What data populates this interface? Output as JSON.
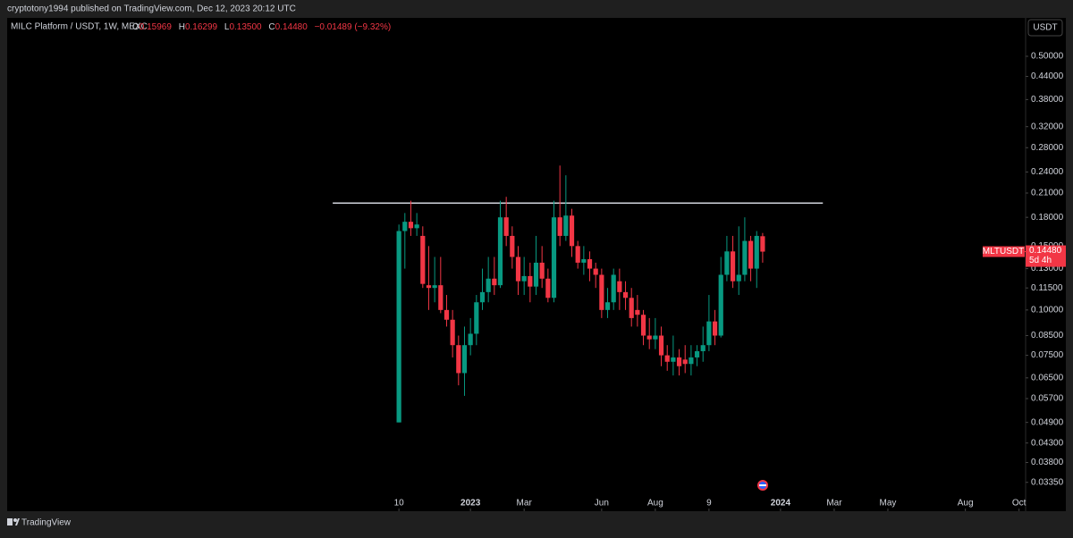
{
  "header": {
    "published": "cryptotony1994 published on TradingView.com, Dec 12, 2023 20:12 UTC"
  },
  "footer": {
    "brand": "TradingView"
  },
  "currency_button": "USDT",
  "legend": {
    "symbol": "MILC Platform / USDT, 1W, MEXC",
    "o_label": "O",
    "o": "0.15969",
    "h_label": "H",
    "h": "0.16299",
    "l_label": "L",
    "l": "0.13500",
    "c_label": "C",
    "c": "0.14480",
    "change": "−0.01489 (−9.32%)"
  },
  "price_tag": {
    "symbol": "MLTUSDT",
    "price": "0.14480",
    "countdown": "5d 4h"
  },
  "chart_data": {
    "type": "candlestick",
    "log_scale": true,
    "up_color": "#089981",
    "down_color": "#f23645",
    "xlim": [
      -65.7,
      105.1
    ],
    "xticks": [
      {
        "value": 0,
        "label": "10"
      },
      {
        "value": 12,
        "label": "2023"
      },
      {
        "value": 21,
        "label": "Mar"
      },
      {
        "value": 34,
        "label": "Jun"
      },
      {
        "value": 43,
        "label": "Aug"
      },
      {
        "value": 52,
        "label": "9"
      },
      {
        "value": 64,
        "label": "2024"
      },
      {
        "value": 73,
        "label": "Mar"
      },
      {
        "value": 82,
        "label": "May"
      },
      {
        "value": 95,
        "label": "Aug"
      },
      {
        "value": 104,
        "label": "Oct"
      }
    ],
    "ylim": [
      0.0279,
      0.638
    ],
    "yticks": [
      {
        "value": 0.5,
        "label": "0.50000"
      },
      {
        "value": 0.44,
        "label": "0.44000"
      },
      {
        "value": 0.38,
        "label": "0.38000"
      },
      {
        "value": 0.32,
        "label": "0.32000"
      },
      {
        "value": 0.28,
        "label": "0.28000"
      },
      {
        "value": 0.24,
        "label": "0.24000"
      },
      {
        "value": 0.21,
        "label": "0.21000"
      },
      {
        "value": 0.18,
        "label": "0.18000"
      },
      {
        "value": 0.15,
        "label": "0.15000"
      },
      {
        "value": 0.13,
        "label": "0.13000"
      },
      {
        "value": 0.115,
        "label": "0.11500"
      },
      {
        "value": 0.1,
        "label": "0.10000"
      },
      {
        "value": 0.085,
        "label": "0.08500"
      },
      {
        "value": 0.075,
        "label": "0.07500"
      },
      {
        "value": 0.065,
        "label": "0.06500"
      },
      {
        "value": 0.057,
        "label": "0.05700"
      },
      {
        "value": 0.049,
        "label": "0.04900"
      },
      {
        "value": 0.043,
        "label": "0.04300"
      },
      {
        "value": 0.038,
        "label": "0.03800"
      },
      {
        "value": 0.0335,
        "label": "0.03350"
      }
    ],
    "hline": {
      "y": 0.197,
      "x": [
        -11.1,
        71.1
      ],
      "color": "#d1d4dc"
    },
    "open": [
      0.049,
      0.165,
      0.175,
      0.168,
      0.16,
      0.117,
      0.115,
      0.117,
      0.1,
      0.094,
      0.08,
      0.067,
      0.08,
      0.086,
      0.105,
      0.112,
      0.122,
      0.117,
      0.18,
      0.16,
      0.14,
      0.12,
      0.124,
      0.116,
      0.135,
      0.122,
      0.108,
      0.18,
      0.16,
      0.182,
      0.15,
      0.135,
      0.138,
      0.13,
      0.125,
      0.1,
      0.105,
      0.12,
      0.112,
      0.108,
      0.1,
      0.097,
      0.085,
      0.083,
      0.085,
      0.075,
      0.072,
      0.074,
      0.073,
      0.071,
      0.074,
      0.077,
      0.08,
      0.093,
      0.085,
      0.125,
      0.145,
      0.12,
      0.125,
      0.155,
      0.13,
      0.15969
    ],
    "high": [
      0.172,
      0.185,
      0.2,
      0.185,
      0.17,
      0.15,
      0.14,
      0.14,
      0.11,
      0.1,
      0.085,
      0.09,
      0.095,
      0.11,
      0.13,
      0.14,
      0.14,
      0.2,
      0.205,
      0.17,
      0.15,
      0.14,
      0.135,
      0.16,
      0.15,
      0.13,
      0.2,
      0.25,
      0.235,
      0.19,
      0.155,
      0.15,
      0.145,
      0.135,
      0.13,
      0.115,
      0.13,
      0.13,
      0.12,
      0.115,
      0.11,
      0.1,
      0.095,
      0.095,
      0.09,
      0.08,
      0.085,
      0.078,
      0.08,
      0.08,
      0.08,
      0.09,
      0.11,
      0.1,
      0.14,
      0.16,
      0.16,
      0.17,
      0.18,
      0.16,
      0.165,
      0.16299
    ],
    "low": [
      0.049,
      0.13,
      0.16,
      0.16,
      0.115,
      0.1,
      0.105,
      0.098,
      0.09,
      0.074,
      0.062,
      0.058,
      0.075,
      0.08,
      0.1,
      0.105,
      0.11,
      0.115,
      0.15,
      0.13,
      0.11,
      0.11,
      0.105,
      0.11,
      0.115,
      0.105,
      0.105,
      0.15,
      0.155,
      0.14,
      0.13,
      0.125,
      0.12,
      0.115,
      0.095,
      0.095,
      0.1,
      0.1,
      0.1,
      0.09,
      0.09,
      0.08,
      0.078,
      0.078,
      0.07,
      0.068,
      0.066,
      0.066,
      0.067,
      0.066,
      0.07,
      0.072,
      0.077,
      0.08,
      0.084,
      0.12,
      0.115,
      0.11,
      0.12,
      0.12,
      0.115,
      0.135
    ],
    "close": [
      0.165,
      0.175,
      0.168,
      0.172,
      0.118,
      0.115,
      0.117,
      0.1,
      0.094,
      0.08,
      0.067,
      0.08,
      0.086,
      0.105,
      0.112,
      0.122,
      0.117,
      0.18,
      0.16,
      0.14,
      0.12,
      0.124,
      0.116,
      0.135,
      0.122,
      0.108,
      0.18,
      0.16,
      0.182,
      0.15,
      0.135,
      0.138,
      0.13,
      0.125,
      0.1,
      0.105,
      0.125,
      0.112,
      0.108,
      0.095,
      0.097,
      0.085,
      0.083,
      0.085,
      0.075,
      0.072,
      0.074,
      0.07,
      0.071,
      0.074,
      0.077,
      0.08,
      0.093,
      0.085,
      0.125,
      0.145,
      0.12,
      0.125,
      0.155,
      0.13,
      0.16,
      0.1448
    ]
  }
}
